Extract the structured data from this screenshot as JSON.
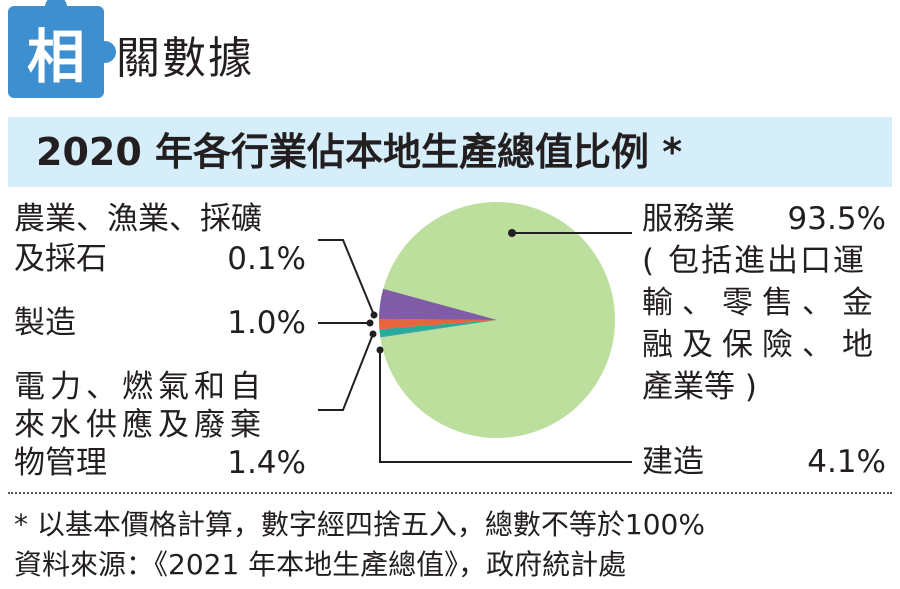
{
  "header": {
    "badge_char": "相",
    "label": "關數據"
  },
  "title": "2020 年各行業佔本地生產總值比例 *",
  "colors": {
    "badge": "#3e8fd0",
    "title_bg": "#d5eef9"
  },
  "chart_data": {
    "type": "pie",
    "title": "2020 年各行業佔本地生產總值比例 *",
    "slices": [
      {
        "label": "服務業",
        "detail": "( 包括進出口運輸、零售、金融及保險、地產業等 )",
        "value": 93.5,
        "display": "93.5%",
        "color": "#bddf9e"
      },
      {
        "label": "農業、漁業、採礦及採石",
        "value": 0.1,
        "display": "0.1%",
        "color": "#3a8fd0"
      },
      {
        "label": "製造",
        "value": 1.0,
        "display": "1.0%",
        "color": "#29ab9a"
      },
      {
        "label": "電力、燃氣和自來水供應及廢棄物管理",
        "value": 1.4,
        "display": "1.4%",
        "color": "#e8643c"
      },
      {
        "label": "建造",
        "value": 4.1,
        "display": "4.1%",
        "color": "#7f5ba8"
      }
    ]
  },
  "labels": {
    "services_name": "服務業",
    "services_pct": "93.5%",
    "services_detail_1": "( 包括進出口運",
    "services_detail_2": "輸、零售、金",
    "services_detail_3": "融及保險、地",
    "services_detail_4": "產業等 )",
    "agri_1": "農業、漁業、採礦",
    "agri_2": "及採石",
    "agri_pct": "0.1%",
    "mfg": "製造",
    "mfg_pct": "1.0%",
    "util_1": "電力、燃氣和自",
    "util_2": "來水供應及廢棄",
    "util_3": "物管理",
    "util_pct": "1.4%",
    "constr": "建造",
    "constr_pct": "4.1%"
  },
  "notes": {
    "line1": "* 以基本價格計算，數字經四捨五入，總數不等於100%",
    "line2": "資料來源：《2021 年本地生產總值》，政府統計處"
  }
}
